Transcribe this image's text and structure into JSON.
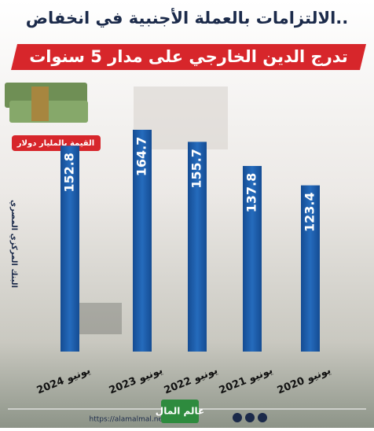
{
  "chart_data": {
    "type": "bar",
    "title": "الالتزامات بالعملة الأجنبية في انخفاض..",
    "subtitle": "تدرج الدين الخارجي على مدار 5 سنوات",
    "unit_note": "القيمة بالمليار دولار",
    "source": "البنك المركزي المصري",
    "website": "https://alamalmal.net",
    "logo": "عالم المال",
    "categories": [
      "يونيو 2024",
      "يونيو 2023",
      "يونيو 2022",
      "يونيو 2021",
      "يونيو 2020"
    ],
    "values": [
      152.8,
      164.7,
      155.7,
      137.8,
      123.4
    ],
    "color": "#1d5fae"
  }
}
